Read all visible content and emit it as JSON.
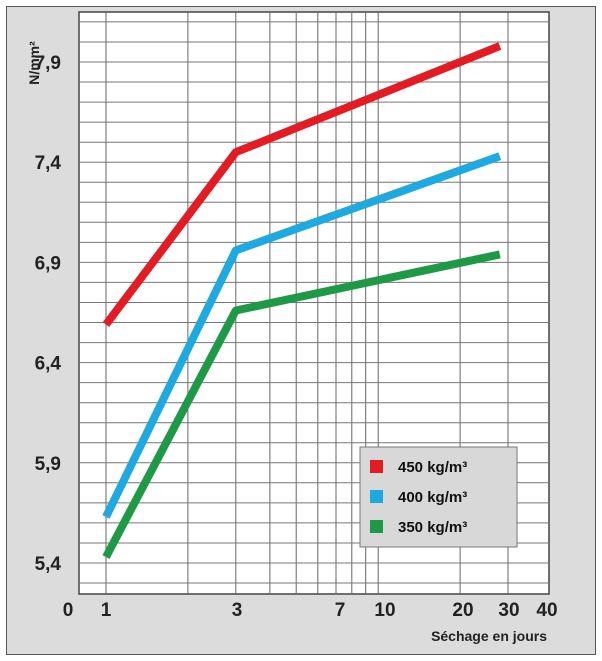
{
  "chart_data": {
    "type": "line",
    "title": "",
    "ylabel": "N/mm²",
    "xlabel": "Séchage en jours",
    "x_scale": "log",
    "x_ticks": [
      {
        "value": 0,
        "label": "0"
      },
      {
        "value": 1,
        "label": "1"
      },
      {
        "value": 3,
        "label": "3"
      },
      {
        "value": 7,
        "label": "7"
      },
      {
        "value": 10,
        "label": "10"
      },
      {
        "value": 20,
        "label": "20"
      },
      {
        "value": 30,
        "label": "30"
      },
      {
        "value": 40,
        "label": "40"
      }
    ],
    "y_ticks": [
      "5,4",
      "5,9",
      "6,4",
      "6,9",
      "7,4",
      "7,9"
    ],
    "ylim": [
      5.2,
      8.25
    ],
    "grid": true,
    "legend_position": "bottom-right",
    "series": [
      {
        "name": "450 kg/m³",
        "color": "#e31b23",
        "x": [
          1,
          3,
          28
        ],
        "y": [
          6.59,
          7.45,
          7.98
        ]
      },
      {
        "name": "400 kg/m³",
        "color": "#1fa9e1",
        "x": [
          1,
          3,
          28
        ],
        "y": [
          5.63,
          6.96,
          7.43
        ]
      },
      {
        "name": "350 kg/m³",
        "color": "#1e9a47",
        "x": [
          1,
          3,
          28
        ],
        "y": [
          5.43,
          6.66,
          6.94
        ]
      }
    ]
  }
}
